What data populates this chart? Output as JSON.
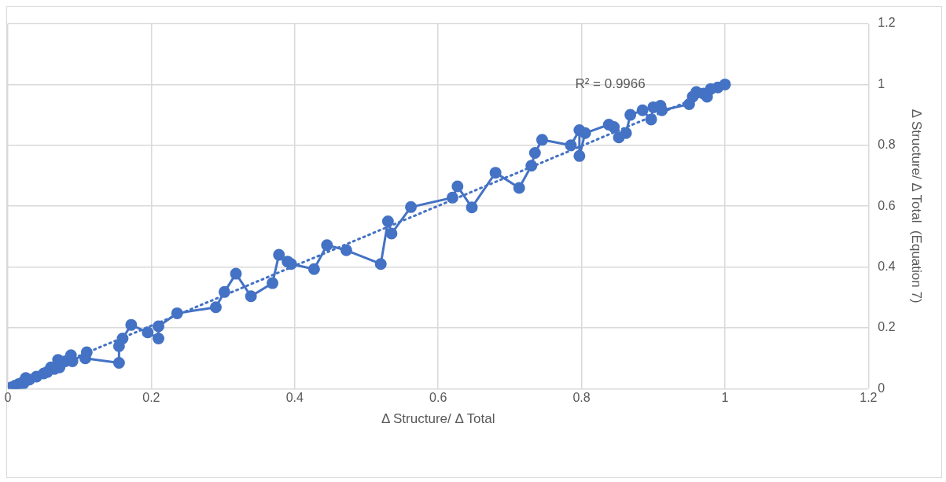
{
  "chart_data": {
    "type": "line",
    "xlabel": "Δ Structure/ Δ Total",
    "ylabel": "Δ Structure/ Δ Total  (Equation 7)",
    "xlim": [
      0,
      1.2
    ],
    "xticks": [
      0,
      0.2,
      0.4,
      0.6,
      0.8,
      1,
      1.2
    ],
    "ylim": [
      0,
      1.2
    ],
    "yticks": [
      0,
      0.2,
      0.4,
      0.6,
      0.8,
      1,
      1.2
    ],
    "grid": true,
    "legend": false,
    "marker": "circle",
    "annotations": [
      "R² = 0.9966"
    ],
    "series": [
      {
        "color": "#4472c4",
        "line_style": "solid",
        "x": [
          0.005,
          0.01,
          0.015,
          0.02,
          0.025,
          0.022,
          0.03,
          0.04,
          0.05,
          0.055,
          0.06,
          0.065,
          0.07,
          0.072,
          0.08,
          0.088,
          0.09,
          0.11,
          0.108,
          0.155,
          0.155,
          0.16,
          0.172,
          0.195,
          0.21,
          0.21,
          0.236,
          0.29,
          0.302,
          0.318,
          0.339,
          0.369,
          0.378,
          0.39,
          0.395,
          0.427,
          0.445,
          0.472,
          0.52,
          0.53,
          0.535,
          0.562,
          0.62,
          0.627,
          0.647,
          0.68,
          0.713,
          0.73,
          0.735,
          0.745,
          0.785,
          0.797,
          0.797,
          0.805,
          0.838,
          0.845,
          0.852,
          0.862,
          0.868,
          0.885,
          0.897,
          0.9,
          0.91,
          0.912,
          0.95,
          0.955,
          0.96,
          0.97,
          0.975,
          0.98,
          0.99,
          1
        ],
        "values": [
          0.005,
          0.01,
          0.015,
          0.02,
          0.035,
          0.018,
          0.03,
          0.04,
          0.05,
          0.055,
          0.07,
          0.065,
          0.095,
          0.07,
          0.09,
          0.11,
          0.09,
          0.12,
          0.1,
          0.085,
          0.14,
          0.165,
          0.21,
          0.185,
          0.165,
          0.205,
          0.248,
          0.268,
          0.318,
          0.378,
          0.304,
          0.347,
          0.44,
          0.418,
          0.41,
          0.393,
          0.472,
          0.455,
          0.41,
          0.55,
          0.51,
          0.597,
          0.628,
          0.665,
          0.596,
          0.71,
          0.66,
          0.733,
          0.775,
          0.818,
          0.8,
          0.85,
          0.765,
          0.84,
          0.868,
          0.86,
          0.826,
          0.84,
          0.9,
          0.915,
          0.885,
          0.925,
          0.93,
          0.915,
          0.935,
          0.96,
          0.975,
          0.97,
          0.96,
          0.985,
          0.99,
          1
        ]
      },
      {
        "type": "line",
        "color": "#4472c4",
        "line_style": "dotted",
        "marker": "none",
        "x": [
          0,
          1
        ],
        "values": [
          0.01,
          0.995
        ]
      }
    ]
  }
}
